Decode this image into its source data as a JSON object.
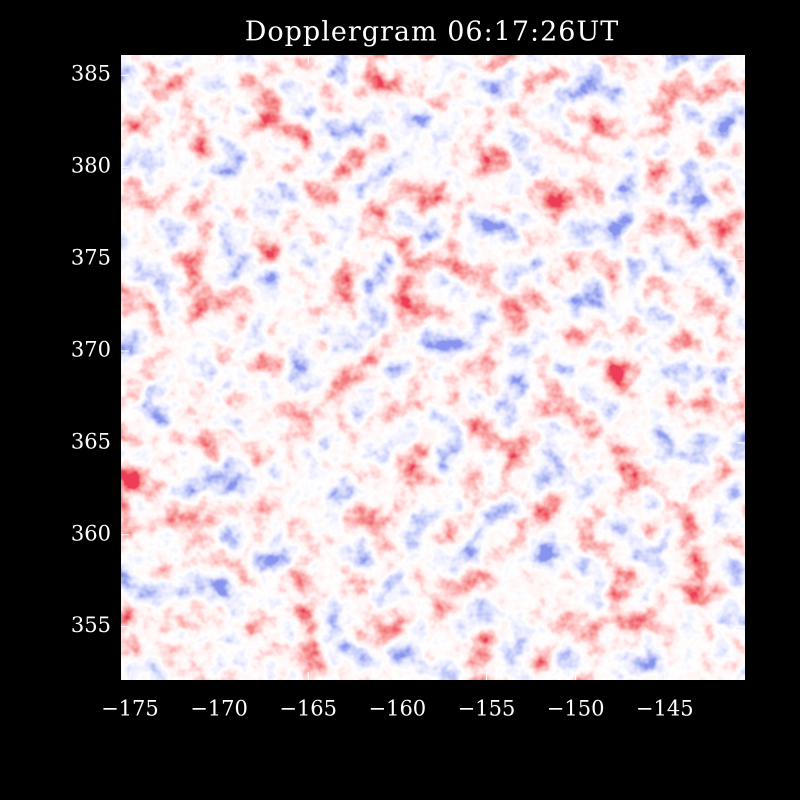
{
  "chart_data": {
    "type": "image",
    "title": "Dopplergram 06:17:26UT",
    "xlim": [
      -175.5,
      -140.5
    ],
    "ylim": [
      352.1,
      386.1
    ],
    "xticks": [
      {
        "value": -175,
        "label": "−175"
      },
      {
        "value": -170,
        "label": "−170"
      },
      {
        "value": -165,
        "label": "−165"
      },
      {
        "value": -160,
        "label": "−160"
      },
      {
        "value": -155,
        "label": "−155"
      },
      {
        "value": -150,
        "label": "−150"
      },
      {
        "value": -145,
        "label": "−145"
      }
    ],
    "yticks": [
      355,
      360,
      365,
      370,
      375,
      380,
      385
    ]
  }
}
